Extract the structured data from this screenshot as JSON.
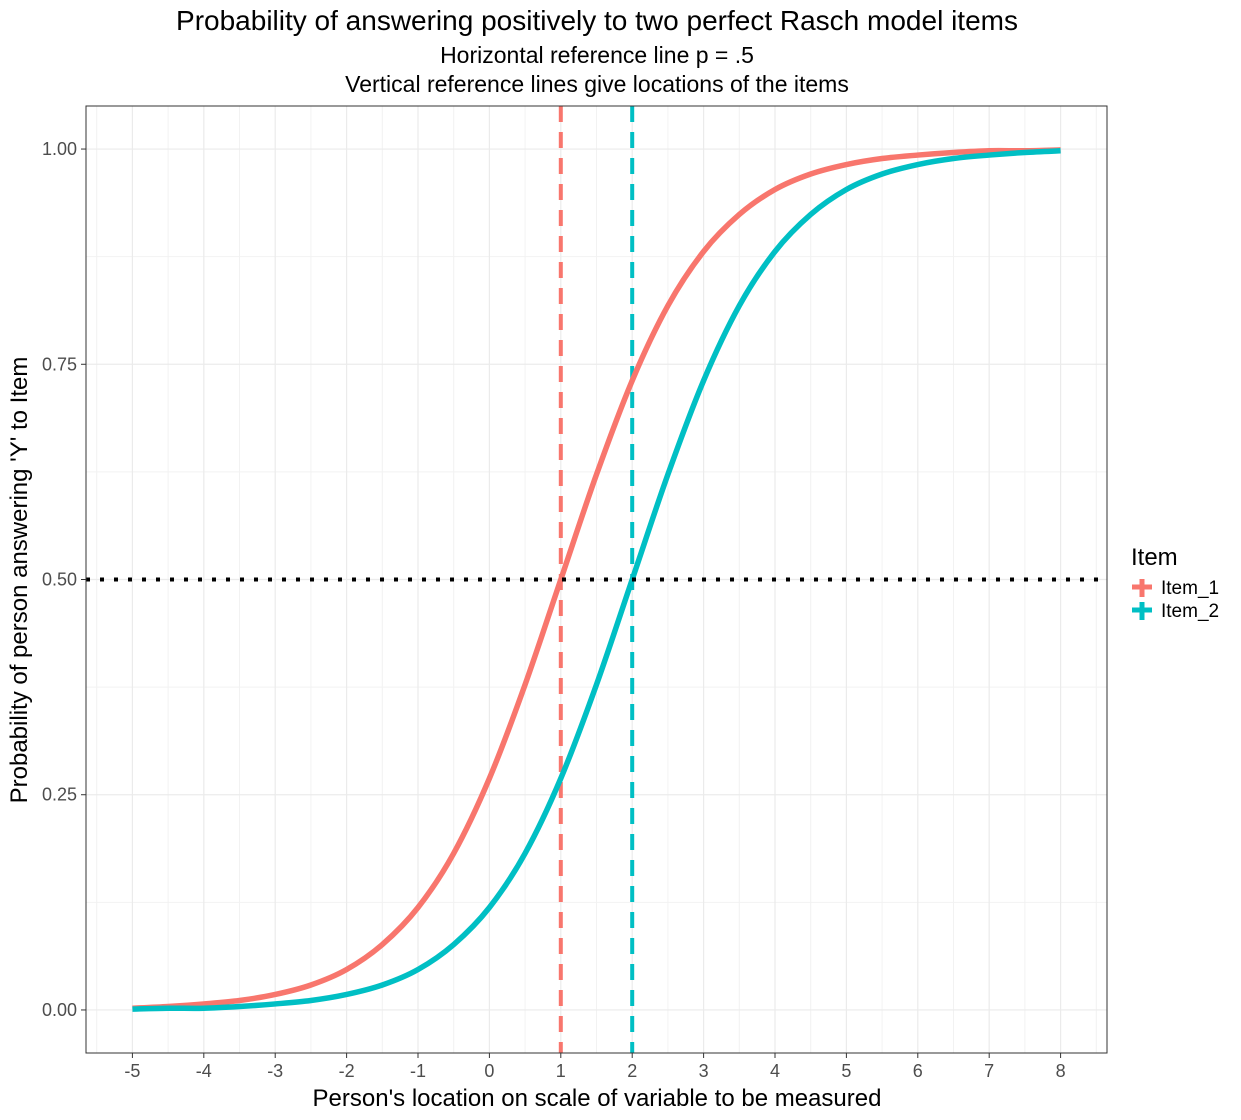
{
  "chart_data": {
    "type": "line",
    "title": "Probability of answering positively to two perfect Rasch model items",
    "subtitle_lines": [
      "Horizontal reference line p = .5",
      "Vertical reference lines give locations of the items"
    ],
    "xlabel": "Person's location on scale of variable to be measured",
    "ylabel": "Probability of person answering 'Y' to Item",
    "xlim": [
      -5.65,
      8.65
    ],
    "ylim": [
      -0.05,
      1.05
    ],
    "x_ticks": [
      -5,
      -4,
      -3,
      -2,
      -1,
      0,
      1,
      2,
      3,
      4,
      5,
      6,
      7,
      8
    ],
    "y_ticks": [
      0,
      0.25,
      0.5,
      0.75,
      1.0
    ],
    "y_tick_labels": [
      "0.00",
      "0.25",
      "0.50",
      "0.75",
      "1.00"
    ],
    "grid": true,
    "legend": {
      "title": "Item",
      "placement": "right"
    },
    "x": [
      -5,
      -4.5,
      -4,
      -3.5,
      -3,
      -2.5,
      -2,
      -1.5,
      -1,
      -0.5,
      0,
      0.5,
      1,
      1.5,
      2,
      2.5,
      3,
      3.5,
      4,
      4.5,
      5,
      5.5,
      6,
      6.5,
      7,
      7.5,
      8
    ],
    "series": [
      {
        "name": "Item_1",
        "color": "#F8766D",
        "location": 1,
        "values": [
          0.002,
          0.004,
          0.007,
          0.011,
          0.018,
          0.029,
          0.047,
          0.076,
          0.119,
          0.182,
          0.269,
          0.378,
          0.5,
          0.622,
          0.731,
          0.818,
          0.881,
          0.924,
          0.953,
          0.971,
          0.982,
          0.989,
          0.993,
          0.996,
          0.998,
          0.998,
          0.999
        ]
      },
      {
        "name": "Item_2",
        "color": "#00BFC4",
        "location": 2,
        "values": [
          0.001,
          0.002,
          0.002,
          0.004,
          0.007,
          0.011,
          0.018,
          0.029,
          0.047,
          0.076,
          0.119,
          0.182,
          0.269,
          0.378,
          0.5,
          0.622,
          0.731,
          0.818,
          0.881,
          0.924,
          0.953,
          0.971,
          0.982,
          0.989,
          0.993,
          0.996,
          0.998
        ]
      }
    ],
    "reference_lines": {
      "horizontal": 0.5,
      "horizontal_style": "dotted",
      "vertical_style": "dashed"
    }
  }
}
